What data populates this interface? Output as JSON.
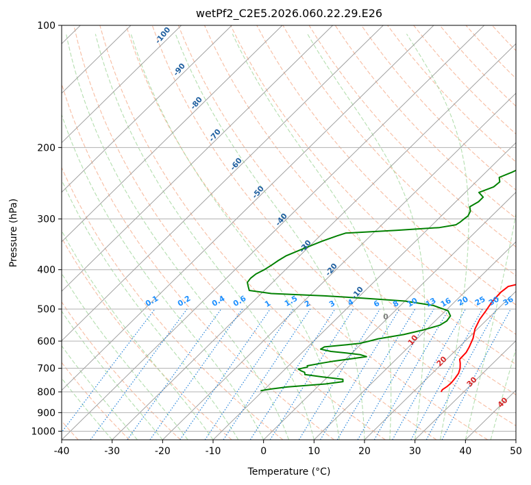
{
  "chart_data": {
    "type": "line",
    "title": "wetPf2_C2E5.2026.060.22.29.E26",
    "xlabel": "Temperature (°C)",
    "ylabel": "Pressure (hPa)",
    "xlim": [
      -40,
      50
    ],
    "ylim": [
      1050,
      100
    ],
    "y_scale": "log",
    "x_ticks": [
      -40,
      -30,
      -20,
      -10,
      0,
      10,
      20,
      30,
      40,
      50
    ],
    "y_ticks": [
      100,
      200,
      300,
      400,
      500,
      600,
      700,
      800,
      900,
      1000
    ],
    "grid": true,
    "series": [
      {
        "color": "#ff0000",
        "points": [
          [
            25.5,
            800
          ],
          [
            25.3,
            790
          ],
          [
            25.6,
            775
          ],
          [
            25.7,
            760
          ],
          [
            25.5,
            740
          ],
          [
            25.2,
            720
          ],
          [
            24.5,
            700
          ],
          [
            23.5,
            680
          ],
          [
            22.6,
            665
          ],
          [
            22.5,
            640
          ],
          [
            22.0,
            620
          ],
          [
            21.0,
            590
          ],
          [
            19.5,
            560
          ],
          [
            18.5,
            530
          ],
          [
            18.0,
            505
          ],
          [
            17.4,
            480
          ],
          [
            17.2,
            455
          ],
          [
            17.5,
            440
          ],
          [
            19.5,
            432
          ],
          [
            20.8,
            428
          ],
          [
            20.0,
            418
          ],
          [
            19.6,
            405
          ],
          [
            19.5,
            395
          ],
          [
            19.0,
            380
          ],
          [
            18.2,
            368
          ],
          [
            17.1,
            355
          ],
          [
            16.0,
            344
          ],
          [
            14.6,
            330
          ],
          [
            13.6,
            318
          ],
          [
            12.6,
            305
          ],
          [
            11.5,
            290
          ],
          [
            10.3,
            275
          ],
          [
            9.5,
            263
          ],
          [
            8.6,
            250
          ],
          [
            7.5,
            238
          ],
          [
            6.6,
            228
          ],
          [
            5.6,
            218
          ],
          [
            4.8,
            208
          ],
          [
            3.6,
            195
          ],
          [
            2.5,
            185
          ],
          [
            2.0,
            179
          ],
          [
            2.1,
            173
          ],
          [
            2.8,
            166
          ],
          [
            3.3,
            160
          ],
          [
            3.4,
            155
          ],
          [
            3.2,
            148
          ],
          [
            2.6,
            142
          ],
          [
            1.8,
            135
          ],
          [
            1.0,
            130
          ],
          [
            0.2,
            125
          ],
          [
            -0.5,
            120
          ],
          [
            -0.7,
            115
          ],
          [
            -0.7,
            108
          ],
          [
            -1.0,
            100
          ]
        ]
      },
      {
        "color": "#008000",
        "points": [
          [
            -10.5,
            795
          ],
          [
            -9.0,
            788
          ],
          [
            -6.0,
            778
          ],
          [
            1.0,
            765
          ],
          [
            4.0,
            755
          ],
          [
            3.5,
            745
          ],
          [
            -1.0,
            735
          ],
          [
            -5.0,
            725
          ],
          [
            -5.5,
            716
          ],
          [
            -6.5,
            710
          ],
          [
            -7.4,
            703
          ],
          [
            -6.0,
            695
          ],
          [
            -6.3,
            690
          ],
          [
            -4.0,
            680
          ],
          [
            -2.0,
            672
          ],
          [
            1.0,
            663
          ],
          [
            3.6,
            655
          ],
          [
            2.0,
            648
          ],
          [
            -1.0,
            642
          ],
          [
            -4.5,
            636
          ],
          [
            -7.0,
            628
          ],
          [
            -6.7,
            620
          ],
          [
            -3.5,
            614
          ],
          [
            -0.5,
            608
          ],
          [
            1.0,
            600
          ],
          [
            2.3,
            592
          ],
          [
            6.5,
            578
          ],
          [
            9.5,
            563
          ],
          [
            11.8,
            548
          ],
          [
            12.3,
            535
          ],
          [
            12.0,
            520
          ],
          [
            10.5,
            505
          ],
          [
            6.5,
            490
          ],
          [
            0.0,
            478
          ],
          [
            -9.0,
            470
          ],
          [
            -17.0,
            464
          ],
          [
            -28.0,
            458
          ],
          [
            -33.0,
            450
          ],
          [
            -34.0,
            440
          ],
          [
            -35.0,
            430
          ],
          [
            -35.2,
            420
          ],
          [
            -35.0,
            410
          ],
          [
            -34.2,
            400
          ],
          [
            -33.7,
            390
          ],
          [
            -33.3,
            380
          ],
          [
            -32.7,
            370
          ],
          [
            -31.0,
            357
          ],
          [
            -28.5,
            340
          ],
          [
            -26.6,
            330
          ],
          [
            -25.5,
            325
          ],
          [
            -16.0,
            320
          ],
          [
            -8.0,
            315
          ],
          [
            -5.3,
            310
          ],
          [
            -5.0,
            305
          ],
          [
            -4.9,
            300
          ],
          [
            -4.7,
            295
          ],
          [
            -5.2,
            287
          ],
          [
            -6.2,
            280
          ],
          [
            -5.5,
            272
          ],
          [
            -5.5,
            265
          ],
          [
            -7.3,
            258
          ],
          [
            -5.5,
            250
          ],
          [
            -5.3,
            243
          ],
          [
            -6.3,
            237
          ],
          [
            -4.8,
            230
          ],
          [
            -3.8,
            224
          ],
          [
            -2.5,
            218
          ],
          [
            -2.0,
            210
          ],
          [
            -2.2,
            205
          ],
          [
            -2.2,
            200
          ],
          [
            -3.5,
            195
          ],
          [
            -4.5,
            190
          ],
          [
            -6.5,
            185
          ],
          [
            -8.5,
            180
          ],
          [
            -10.0,
            175
          ],
          [
            -10.6,
            170
          ],
          [
            -10.8,
            165
          ],
          [
            -9.5,
            160
          ],
          [
            -7.5,
            155
          ],
          [
            -5.5,
            148
          ],
          [
            -4.0,
            142
          ],
          [
            -1.5,
            135
          ],
          [
            -0.8,
            130
          ],
          [
            -0.5,
            120
          ],
          [
            -0.6,
            115
          ],
          [
            -1.0,
            100
          ]
        ]
      }
    ],
    "dry_adiabat_labels": [
      "-100",
      "-90",
      "-80",
      "-70",
      "-60",
      "-50",
      "-40",
      "-30",
      "-20",
      "-10",
      "0",
      "10",
      "20",
      "30",
      "40"
    ],
    "mixing_ratio_labels": [
      "0.1",
      "0.2",
      "0.4",
      "0.6",
      "1",
      "1.5",
      "2",
      "3",
      "4",
      "6",
      "8",
      "10",
      "13",
      "16",
      "20",
      "25",
      "30",
      "36"
    ],
    "colors": {
      "dry_adiabat": "#f4a582",
      "moist_adiabat": "#a6d8a0",
      "mixing_ratio": "#1e7fd8",
      "isotherm": "#808080",
      "dry_label_cold": "#1f5f9f",
      "dry_label_warm": "#d62728",
      "mixing_label": "#1e90ff",
      "zero_label": "#7f7f7f"
    }
  }
}
